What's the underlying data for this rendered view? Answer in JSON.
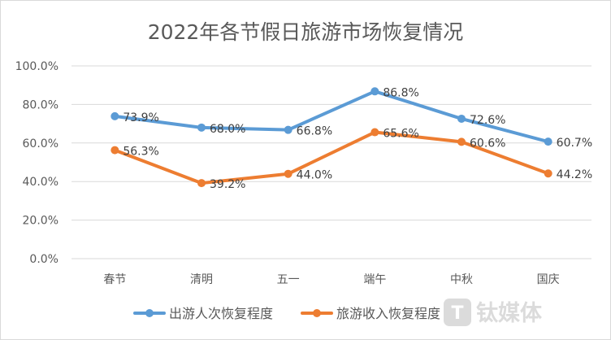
{
  "chart_data": {
    "type": "line",
    "title": "2022年各节假日旅游市场恢复情况",
    "categories": [
      "春节",
      "清明",
      "五一",
      "端午",
      "中秋",
      "国庆"
    ],
    "series": [
      {
        "name": "出游人次恢复程度",
        "color": "#5b9bd5",
        "values": [
          73.9,
          68.0,
          66.8,
          86.8,
          72.6,
          60.7
        ],
        "labels": [
          "73.9%",
          "68.0%",
          "66.8%",
          "86.8%",
          "72.6%",
          "60.7%"
        ]
      },
      {
        "name": "旅游收入恢复程度",
        "color": "#ed7d31",
        "values": [
          56.3,
          39.2,
          44.0,
          65.6,
          60.6,
          44.2
        ],
        "labels": [
          "56.3%",
          "39.2%",
          "44.0%",
          "65.6%",
          "60.6%",
          "44.2%"
        ]
      }
    ],
    "ylim": [
      0,
      100
    ],
    "yticks": [
      "0.0%",
      "20.0%",
      "40.0%",
      "60.0%",
      "80.0%",
      "100.0%"
    ],
    "grid": true,
    "legend": "bottom",
    "watermark": "钛媒体"
  }
}
